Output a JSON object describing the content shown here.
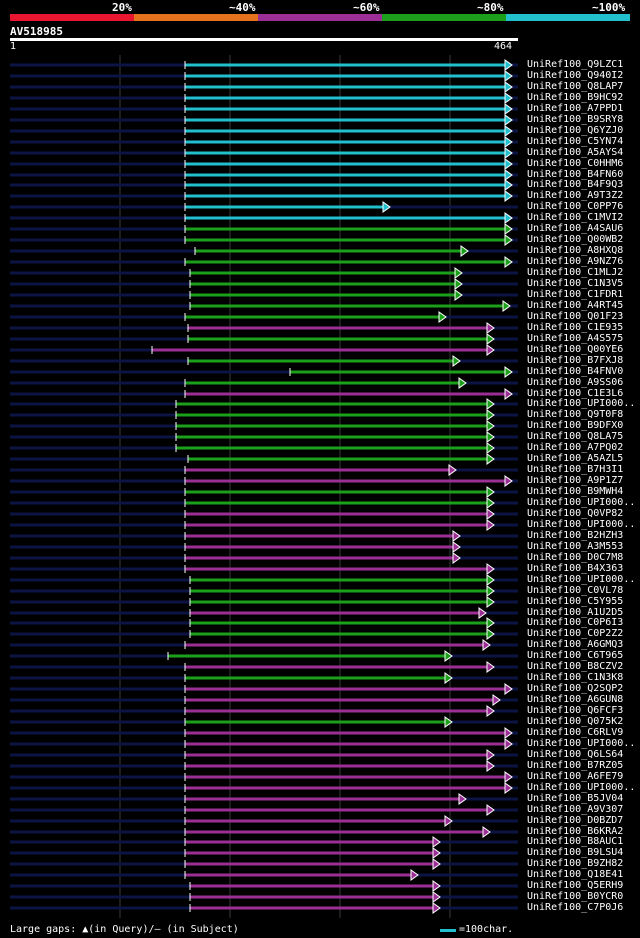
{
  "legend": {
    "labels": [
      "20%",
      "~40%",
      "~60%",
      "~80%",
      "~100%"
    ],
    "colors": [
      "#e8162f",
      "#e5731d",
      "#9b2f96",
      "#1ca01c",
      "#22bfcf"
    ]
  },
  "query": {
    "name": "AV518985",
    "start": "1",
    "end": "464"
  },
  "colors": {
    "cyan": "#22bfcf",
    "green": "#1ca01c",
    "magenta": "#9b2f96",
    "track": "#0c1444",
    "grid": "#3a3a3a"
  },
  "hits": [
    {
      "label": "UniRef100_Q9LZC1",
      "c": "cyan"
    },
    {
      "label": "UniRef100_Q940I2",
      "c": "cyan"
    },
    {
      "label": "UniRef100_Q8LAP7",
      "c": "cyan"
    },
    {
      "label": "UniRef100_B9HC92",
      "c": "cyan"
    },
    {
      "label": "UniRef100_A7PPD1",
      "c": "cyan"
    },
    {
      "label": "UniRef100_B9SRY8",
      "c": "cyan"
    },
    {
      "label": "UniRef100_Q6YZJ0",
      "c": "cyan"
    },
    {
      "label": "UniRef100_C5YN74",
      "c": "cyan"
    },
    {
      "label": "UniRef100_A5AYS4",
      "c": "cyan"
    },
    {
      "label": "UniRef100_C0HHM6",
      "c": "cyan"
    },
    {
      "label": "UniRef100_B4FN60",
      "c": "cyan"
    },
    {
      "label": "UniRef100_B4F9Q3",
      "c": "cyan"
    },
    {
      "label": "UniRef100_A9T3Z2",
      "c": "cyan"
    },
    {
      "label": "UniRef100_C0PP76",
      "c": "cyan"
    },
    {
      "label": "UniRef100_C1MVI2",
      "c": "cyan"
    },
    {
      "label": "UniRef100_A4SAU6",
      "c": "green"
    },
    {
      "label": "UniRef100_Q00WB2",
      "c": "green"
    },
    {
      "label": "UniRef100_A8HXQ8",
      "c": "green"
    },
    {
      "label": "UniRef100_A9NZ76",
      "c": "green"
    },
    {
      "label": "UniRef100_C1MLJ2",
      "c": "green"
    },
    {
      "label": "UniRef100_C1N3V5",
      "c": "green"
    },
    {
      "label": "UniRef100_C1FDR1",
      "c": "green"
    },
    {
      "label": "UniRef100_A4RT45",
      "c": "green"
    },
    {
      "label": "UniRef100_Q01F23",
      "c": "green"
    },
    {
      "label": "UniRef100_C1E935",
      "c": "magenta"
    },
    {
      "label": "UniRef100_A4S575",
      "c": "green"
    },
    {
      "label": "UniRef100_Q00YE6",
      "c": "magenta"
    },
    {
      "label": "UniRef100_B7FXJ8",
      "c": "green"
    },
    {
      "label": "UniRef100_B4FNV0",
      "c": "green"
    },
    {
      "label": "UniRef100_A9SS06",
      "c": "green"
    },
    {
      "label": "UniRef100_C1E3L6",
      "c": "magenta"
    },
    {
      "label": "UniRef100_UPI000..",
      "c": "green"
    },
    {
      "label": "UniRef100_Q9T0F8",
      "c": "green"
    },
    {
      "label": "UniRef100_B9DFX0",
      "c": "green"
    },
    {
      "label": "UniRef100_Q8LA75",
      "c": "green"
    },
    {
      "label": "UniRef100_A7PQ02",
      "c": "green"
    },
    {
      "label": "UniRef100_A5AZL5",
      "c": "green"
    },
    {
      "label": "UniRef100_B7H3I1",
      "c": "magenta"
    },
    {
      "label": "UniRef100_A9P1Z7",
      "c": "magenta"
    },
    {
      "label": "UniRef100_B9MWH4",
      "c": "green"
    },
    {
      "label": "UniRef100_UPI000..",
      "c": "green"
    },
    {
      "label": "UniRef100_Q0VP82",
      "c": "magenta"
    },
    {
      "label": "UniRef100_UPI000..",
      "c": "magenta"
    },
    {
      "label": "UniRef100_B2HZH3",
      "c": "magenta"
    },
    {
      "label": "UniRef100_A3M553",
      "c": "magenta"
    },
    {
      "label": "UniRef100_D0C7M8",
      "c": "magenta"
    },
    {
      "label": "UniRef100_B4X363",
      "c": "magenta"
    },
    {
      "label": "UniRef100_UPI000..",
      "c": "green"
    },
    {
      "label": "UniRef100_C0VL78",
      "c": "green"
    },
    {
      "label": "UniRef100_C5Y955",
      "c": "green"
    },
    {
      "label": "UniRef100_A1U2D5",
      "c": "magenta"
    },
    {
      "label": "UniRef100_C0P6I3",
      "c": "green"
    },
    {
      "label": "UniRef100_C0P2Z2",
      "c": "green"
    },
    {
      "label": "UniRef100_A6GMQ3",
      "c": "magenta"
    },
    {
      "label": "UniRef100_C6T965",
      "c": "green"
    },
    {
      "label": "UniRef100_B8CZV2",
      "c": "magenta"
    },
    {
      "label": "UniRef100_C1N3K8",
      "c": "green"
    },
    {
      "label": "UniRef100_Q2SQP2",
      "c": "magenta"
    },
    {
      "label": "UniRef100_A6GUN8",
      "c": "magenta"
    },
    {
      "label": "UniRef100_Q6FCF3",
      "c": "magenta"
    },
    {
      "label": "UniRef100_Q075K2",
      "c": "green"
    },
    {
      "label": "UniRef100_C6RLV9",
      "c": "magenta"
    },
    {
      "label": "UniRef100_UPI000..",
      "c": "magenta"
    },
    {
      "label": "UniRef100_Q6LS64",
      "c": "magenta"
    },
    {
      "label": "UniRef100_B7RZ05",
      "c": "magenta"
    },
    {
      "label": "UniRef100_A6FE79",
      "c": "magenta"
    },
    {
      "label": "UniRef100_UPI000..",
      "c": "magenta"
    },
    {
      "label": "UniRef100_B5JV04",
      "c": "magenta"
    },
    {
      "label": "UniRef100_A9V307",
      "c": "magenta"
    },
    {
      "label": "UniRef100_D0BZD7",
      "c": "magenta"
    },
    {
      "label": "UniRef100_B6KRA2",
      "c": "magenta"
    },
    {
      "label": "UniRef100_B8AUC1",
      "c": "magenta"
    },
    {
      "label": "UniRef100_B9LSU4",
      "c": "magenta"
    },
    {
      "label": "UniRef100_B9ZH82",
      "c": "magenta"
    },
    {
      "label": "UniRef100_Q18E41",
      "c": "magenta"
    },
    {
      "label": "UniRef100_Q5ERH9",
      "c": "magenta"
    },
    {
      "label": "UniRef100_B0YCR0",
      "c": "magenta"
    },
    {
      "label": "UniRef100_C7P0J6",
      "c": "magenta"
    }
  ],
  "footer": {
    "gaps_label": "Large gaps: ▲(in Query)/— (in Subject)",
    "scale_label": "=100char."
  }
}
